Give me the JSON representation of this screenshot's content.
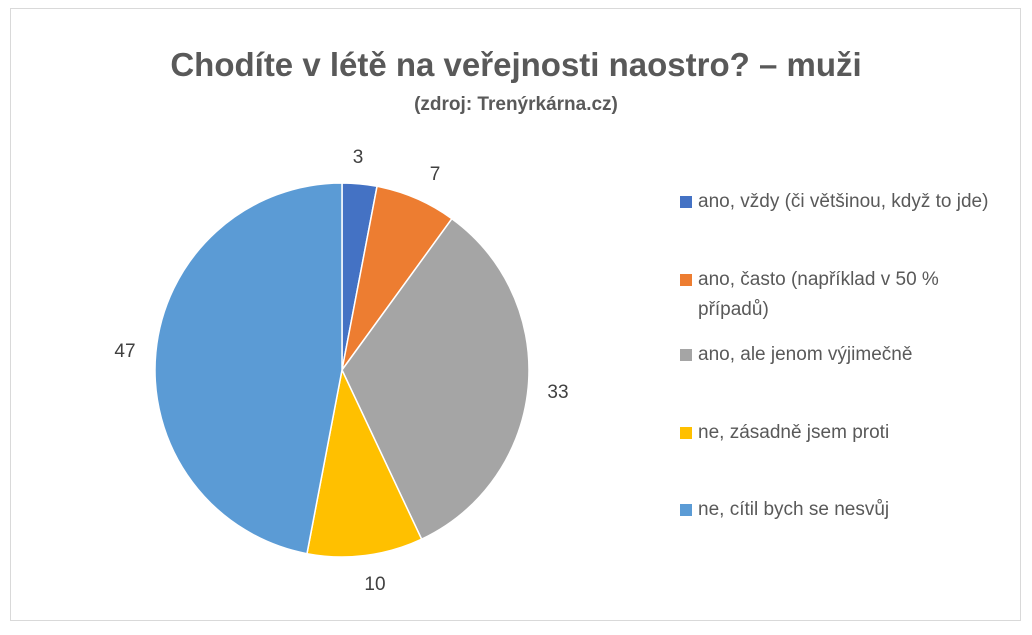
{
  "chart_data": {
    "type": "pie",
    "title": "Chodíte v létě na veřejnosti naostro? – muži",
    "subtitle": "(zdroj: Trenýrkárna.cz)",
    "start_angle": "top, clockwise",
    "legend_position": "right",
    "slices": [
      {
        "label": "ano, vždy (či většinou, když to jde)",
        "value": 3,
        "data_label": "3",
        "color": "#4472c4"
      },
      {
        "label": "ano, často (například v 50 % případů)",
        "value": 7,
        "data_label": "7",
        "color": "#ed7d31"
      },
      {
        "label": "ano, ale jenom výjimečně",
        "value": 33,
        "data_label": "33",
        "color": "#a5a5a5"
      },
      {
        "label": "ne, zásadně jsem proti",
        "value": 10,
        "data_label": "10",
        "color": "#ffc000"
      },
      {
        "label": "ne, cítil bych se nesvůj",
        "value": 47,
        "data_label": "47",
        "color": "#5b9bd5"
      }
    ]
  }
}
